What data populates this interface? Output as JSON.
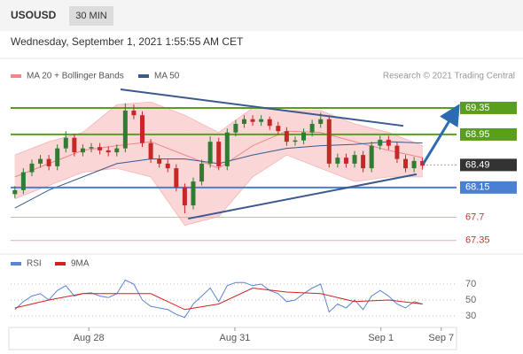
{
  "header": {
    "symbol": "USOUSD",
    "timeframe": "30 MIN",
    "date": "Wednesday, September 1, 2021 1:55:55 AM CET",
    "credit": "Research © 2021 Trading Central"
  },
  "chart_data": [
    {
      "type": "candlestick",
      "xlim": [
        -0.5,
        52
      ],
      "ylim": [
        67.24,
        69.71
      ],
      "up_color": "#2e7d32",
      "down_color": "#c62828",
      "open": [
        68.05,
        68.11,
        68.38,
        68.51,
        68.58,
        68.47,
        68.74,
        68.9,
        68.68,
        68.74,
        68.76,
        68.71,
        68.68,
        68.74,
        69.31,
        69.24,
        68.82,
        68.58,
        68.51,
        68.44,
        68.15,
        67.88,
        68.24,
        68.51,
        68.84,
        68.47,
        68.98,
        69.11,
        69.18,
        69.14,
        69.18,
        69.08,
        69.0,
        68.84,
        68.86,
        68.98,
        69.11,
        69.18,
        68.51,
        68.6,
        68.51,
        68.64,
        68.44,
        68.78,
        68.87,
        68.78,
        68.58,
        68.44,
        68.55
      ],
      "high": [
        68.17,
        68.44,
        68.57,
        68.64,
        68.64,
        68.8,
        69.0,
        68.96,
        68.8,
        68.82,
        68.82,
        68.77,
        68.8,
        69.42,
        69.4,
        69.3,
        68.88,
        68.64,
        68.57,
        68.5,
        68.21,
        68.3,
        68.57,
        68.92,
        68.9,
        69.04,
        69.17,
        69.24,
        69.24,
        69.24,
        69.22,
        69.14,
        69.06,
        68.92,
        69.04,
        69.17,
        69.28,
        69.24,
        68.66,
        68.66,
        68.7,
        68.7,
        68.84,
        68.93,
        68.93,
        68.84,
        68.64,
        68.61,
        68.6
      ],
      "low": [
        67.99,
        68.05,
        68.32,
        68.45,
        68.41,
        68.41,
        68.68,
        68.62,
        68.62,
        68.68,
        68.65,
        68.62,
        68.62,
        68.68,
        69.18,
        68.76,
        68.52,
        68.45,
        68.38,
        68.09,
        67.76,
        67.82,
        68.18,
        68.45,
        68.41,
        68.41,
        68.92,
        69.05,
        69.08,
        69.08,
        69.02,
        68.94,
        68.78,
        68.78,
        68.8,
        68.92,
        69.05,
        68.45,
        68.45,
        68.45,
        68.45,
        68.38,
        68.38,
        68.72,
        68.72,
        68.52,
        68.38,
        68.38,
        68.42
      ],
      "close": [
        68.11,
        68.38,
        68.51,
        68.58,
        68.47,
        68.74,
        68.9,
        68.68,
        68.74,
        68.76,
        68.71,
        68.68,
        68.74,
        69.31,
        69.24,
        68.82,
        68.58,
        68.51,
        68.44,
        68.15,
        67.88,
        68.24,
        68.51,
        68.84,
        68.47,
        68.98,
        69.11,
        69.18,
        69.14,
        69.18,
        69.08,
        69.0,
        68.84,
        68.86,
        68.98,
        69.11,
        69.18,
        68.51,
        68.6,
        68.51,
        68.64,
        68.44,
        68.78,
        68.87,
        68.78,
        68.58,
        68.44,
        68.55,
        68.48
      ],
      "bands": {
        "name": "MA 20 + Bollinger Bands",
        "color": "#f08888",
        "fill": "#fbd6d6",
        "x": [
          0,
          4,
          8,
          12,
          16,
          20,
          24,
          28,
          32,
          36,
          40,
          44,
          48
        ],
        "values": [
          68.31,
          68.51,
          68.71,
          68.78,
          68.84,
          68.64,
          68.44,
          68.78,
          69.0,
          68.98,
          68.84,
          68.71,
          68.6
        ],
        "upper": [
          68.64,
          68.84,
          68.98,
          69.4,
          69.44,
          69.24,
          68.98,
          69.35,
          69.31,
          69.31,
          69.11,
          68.98,
          68.78
        ],
        "lower": [
          67.98,
          68.18,
          68.38,
          68.44,
          68.31,
          67.58,
          67.71,
          68.31,
          68.64,
          68.44,
          68.24,
          68.31,
          68.31
        ]
      },
      "series": [
        {
          "name": "MA 50",
          "color": "#3a5a8c",
          "x": [
            0,
            4,
            8,
            12,
            16,
            20,
            24,
            28,
            32,
            36,
            40,
            44,
            48
          ],
          "values": [
            67.84,
            68.11,
            68.31,
            68.51,
            68.58,
            68.58,
            68.51,
            68.64,
            68.74,
            68.78,
            68.8,
            68.84,
            68.82
          ]
        }
      ],
      "levels": [
        {
          "value": 69.35,
          "color": "#5a9e1e",
          "style": "box"
        },
        {
          "value": 68.95,
          "color": "#5a9e1e",
          "style": "box"
        },
        {
          "value": 68.49,
          "color": "#333333",
          "style": "dotted"
        },
        {
          "value": 68.15,
          "color": "#4a7fd4",
          "style": "box"
        },
        {
          "value": 67.7,
          "color": "#c0392b",
          "style": "text"
        },
        {
          "value": 67.35,
          "color": "#c0392b",
          "style": "text"
        }
      ],
      "trendlines": [
        {
          "color": "#3b5a8f",
          "x": [
            12.44,
            45.74
          ],
          "y": [
            69.63,
            69.08
          ]
        },
        {
          "color": "#3b5a8f",
          "x": [
            20.4,
            47.3
          ],
          "y": [
            67.68,
            68.35
          ]
        }
      ],
      "arrow": {
        "color": "#2b6cb0",
        "x": [
          48.1,
          51.9
        ],
        "y": [
          68.51,
          69.31
        ]
      }
    },
    {
      "type": "line",
      "xlim": [
        -0.5,
        52
      ],
      "ylim": [
        24.4,
        80
      ],
      "yticks": [
        30,
        50,
        70
      ],
      "grid": true,
      "xticks": [
        {
          "value": 8.7,
          "label": "Aug 28"
        },
        {
          "value": 25.9,
          "label": "Aug 31"
        },
        {
          "value": 43.1,
          "label": "Sep 1"
        },
        {
          "value": 50.2,
          "label": "Sep 7"
        }
      ],
      "series": [
        {
          "name": "RSI",
          "color": "#5b84d6",
          "x": [
            0,
            1,
            2,
            3,
            4,
            5,
            6,
            7,
            8,
            9,
            10,
            11,
            12,
            13,
            14,
            15,
            16,
            17,
            18,
            19,
            20,
            21,
            22,
            23,
            24,
            25,
            26,
            27,
            28,
            29,
            30,
            31,
            32,
            33,
            34,
            35,
            36,
            37,
            38,
            39,
            40,
            41,
            42,
            43,
            44,
            45,
            46,
            47,
            48
          ],
          "values": [
            38,
            48,
            55,
            58,
            50,
            62,
            68,
            55,
            58,
            59,
            55,
            53,
            58,
            75,
            70,
            50,
            42,
            40,
            38,
            32,
            28,
            45,
            55,
            65,
            48,
            68,
            72,
            72,
            68,
            70,
            62,
            58,
            48,
            50,
            58,
            65,
            70,
            35,
            45,
            40,
            50,
            38,
            55,
            62,
            55,
            45,
            40,
            48,
            45
          ]
        },
        {
          "name": "9MA",
          "color": "#d42020",
          "x": [
            0,
            4,
            8,
            12,
            16,
            20,
            24,
            28,
            32,
            36,
            40,
            44,
            48
          ],
          "values": [
            40,
            50,
            58,
            58,
            58,
            38,
            45,
            65,
            60,
            58,
            48,
            50,
            45
          ]
        }
      ]
    }
  ]
}
